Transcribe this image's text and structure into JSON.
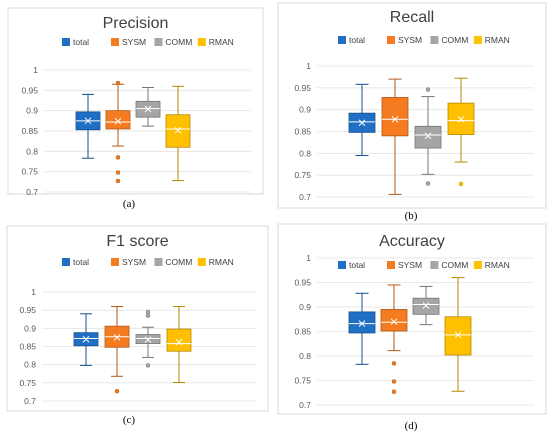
{
  "chart_data": [
    {
      "type": "box",
      "title": "Precision",
      "caption": "(a)",
      "ylim": [
        0.7,
        1
      ],
      "yticks": [
        "1",
        "0.95",
        "0.9",
        "0.85",
        "0.8",
        "0.75",
        "0.7"
      ],
      "grid": true,
      "legend_placement": "top",
      "series": [
        {
          "name": "total",
          "color": "#1f6fc5",
          "min": 0.783,
          "q1": 0.853,
          "median": 0.875,
          "q3": 0.897,
          "max": 0.94,
          "mean": 0.875,
          "outliers": []
        },
        {
          "name": "SYSM",
          "color": "#f47b20",
          "min": 0.813,
          "q1": 0.855,
          "median": 0.872,
          "q3": 0.9,
          "max": 0.965,
          "mean": 0.874,
          "outliers": [
            0.968,
            0.785,
            0.748,
            0.727
          ]
        },
        {
          "name": "COMM",
          "color": "#a5a5a5",
          "min": 0.862,
          "q1": 0.884,
          "median": 0.905,
          "q3": 0.923,
          "max": 0.957,
          "mean": 0.904,
          "outliers": []
        },
        {
          "name": "RMAN",
          "color": "#ffc000",
          "min": 0.728,
          "q1": 0.81,
          "median": 0.855,
          "q3": 0.89,
          "max": 0.96,
          "mean": 0.852,
          "outliers": []
        }
      ]
    },
    {
      "type": "box",
      "title": "Recall",
      "caption": "(b)",
      "ylim": [
        0.7,
        1
      ],
      "yticks": [
        "1",
        "0.95",
        "0.9",
        "0.85",
        "0.8",
        "0.75",
        "0.7"
      ],
      "grid": true,
      "legend_placement": "top",
      "series": [
        {
          "name": "total",
          "color": "#1f6fc5",
          "min": 0.795,
          "q1": 0.848,
          "median": 0.872,
          "q3": 0.892,
          "max": 0.958,
          "mean": 0.87,
          "outliers": []
        },
        {
          "name": "SYSM",
          "color": "#f47b20",
          "min": 0.706,
          "q1": 0.84,
          "median": 0.878,
          "q3": 0.928,
          "max": 0.97,
          "mean": 0.878,
          "outliers": []
        },
        {
          "name": "COMM",
          "color": "#a5a5a5",
          "min": 0.752,
          "q1": 0.812,
          "median": 0.842,
          "q3": 0.862,
          "max": 0.93,
          "mean": 0.84,
          "outliers": [
            0.946,
            0.731
          ]
        },
        {
          "name": "RMAN",
          "color": "#ffc000",
          "min": 0.78,
          "q1": 0.843,
          "median": 0.875,
          "q3": 0.915,
          "max": 0.972,
          "mean": 0.878,
          "outliers": [
            0.73
          ]
        }
      ]
    },
    {
      "type": "box",
      "title": "F1 score",
      "caption": "(c)",
      "ylim": [
        0.7,
        1
      ],
      "yticks": [
        "1",
        "0.95",
        "0.9",
        "0.85",
        "0.8",
        "0.75",
        "0.7"
      ],
      "grid": true,
      "legend_placement": "top",
      "series": [
        {
          "name": "total",
          "color": "#1f6fc5",
          "min": 0.798,
          "q1": 0.852,
          "median": 0.872,
          "q3": 0.888,
          "max": 0.94,
          "mean": 0.87,
          "outliers": []
        },
        {
          "name": "SYSM",
          "color": "#f47b20",
          "min": 0.768,
          "q1": 0.848,
          "median": 0.877,
          "q3": 0.906,
          "max": 0.96,
          "mean": 0.875,
          "outliers": [
            0.727
          ]
        },
        {
          "name": "COMM",
          "color": "#a5a5a5",
          "min": 0.82,
          "q1": 0.858,
          "median": 0.872,
          "q3": 0.883,
          "max": 0.903,
          "mean": 0.869,
          "outliers": [
            0.945,
            0.935,
            0.798
          ]
        },
        {
          "name": "RMAN",
          "color": "#ffc000",
          "min": 0.751,
          "q1": 0.837,
          "median": 0.858,
          "q3": 0.898,
          "max": 0.96,
          "mean": 0.862,
          "outliers": []
        }
      ]
    },
    {
      "type": "box",
      "title": "Accuracy",
      "caption": "(d)",
      "ylim": [
        0.7,
        1
      ],
      "yticks": [
        "1",
        "0.95",
        "0.9",
        "0.85",
        "0.8",
        "0.75",
        "0.7"
      ],
      "grid": true,
      "legend_placement": "top",
      "series": [
        {
          "name": "total",
          "color": "#1f6fc5",
          "min": 0.783,
          "q1": 0.847,
          "median": 0.866,
          "q3": 0.89,
          "max": 0.928,
          "mean": 0.866,
          "outliers": []
        },
        {
          "name": "SYSM",
          "color": "#f47b20",
          "min": 0.811,
          "q1": 0.851,
          "median": 0.869,
          "q3": 0.895,
          "max": 0.945,
          "mean": 0.87,
          "outliers": [
            0.785,
            0.748,
            0.727
          ]
        },
        {
          "name": "COMM",
          "color": "#a5a5a5",
          "min": 0.864,
          "q1": 0.885,
          "median": 0.905,
          "q3": 0.918,
          "max": 0.942,
          "mean": 0.903,
          "outliers": []
        },
        {
          "name": "RMAN",
          "color": "#ffc000",
          "min": 0.728,
          "q1": 0.802,
          "median": 0.843,
          "q3": 0.88,
          "max": 0.96,
          "mean": 0.843,
          "outliers": []
        }
      ]
    }
  ]
}
